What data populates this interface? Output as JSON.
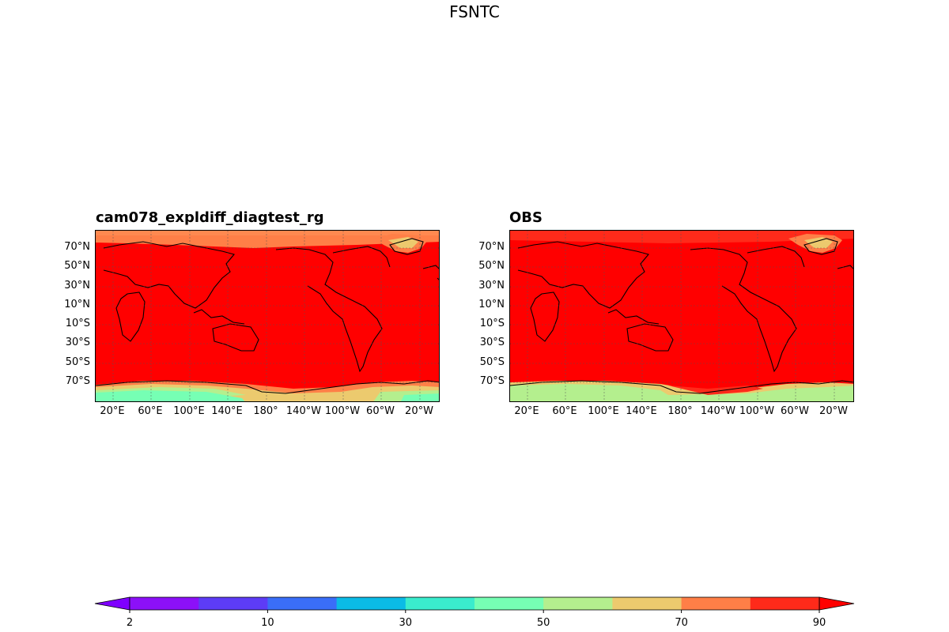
{
  "figure": {
    "title": "FSNTC"
  },
  "panels": [
    {
      "title": "cam078_expldiff_diagtest_rg"
    },
    {
      "title": "OBS"
    }
  ],
  "axes": {
    "lat_labels": [
      "70°N",
      "50°N",
      "30°N",
      "10°N",
      "10°S",
      "30°S",
      "50°S",
      "70°S"
    ],
    "lon_labels": [
      "20°E",
      "60°E",
      "100°E",
      "140°E",
      "180°",
      "140°W",
      "100°W",
      "60°W",
      "20°W"
    ]
  },
  "colorbar": {
    "ticks": [
      "2",
      "10",
      "30",
      "50",
      "70",
      "90"
    ],
    "levels": [
      2,
      5,
      10,
      20,
      30,
      40,
      50,
      60,
      70,
      80,
      90
    ],
    "colors": [
      "#8c10f8",
      "#5d3cf6",
      "#3a6ef8",
      "#0bbbe6",
      "#3aeccd",
      "#76ffb4",
      "#b4ef8e",
      "#ecca6e",
      "#ff7f47",
      "#ff2a1a"
    ],
    "under_color": "#7f00ff",
    "over_color": "#ff0000",
    "extend": "both"
  },
  "chart_data": {
    "type": "map",
    "title": "FSNTC",
    "projection": "PlateCarree, central longitude 180",
    "lat_range": [
      -90,
      90
    ],
    "lon_range": [
      0,
      360
    ],
    "panels": [
      {
        "name": "cam078_expldiff_diagtest_rg",
        "dominant_range": "≥ 90 (red) across tropics and mid-latitudes",
        "polar_north": "80–90 band near 80°N; 60–70 over Greenland",
        "polar_south": "40–60 over Antarctica, 60–80 along the coast"
      },
      {
        "name": "OBS",
        "dominant_range": "≥ 90 (red) across most of the globe",
        "polar_north": "80–90 band near 80°N; 60–70 over Greenland",
        "polar_south": "50–60 over Antarctica, 60–80 along the coast"
      }
    ],
    "grid": true
  }
}
